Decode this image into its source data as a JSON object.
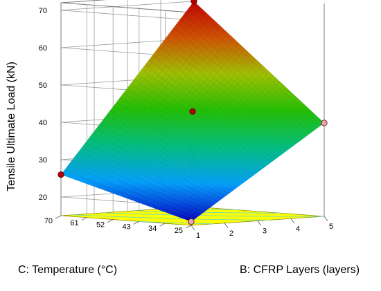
{
  "chart_data": {
    "type": "surface",
    "zlabel": "Tensile Ultimate Load (kN)",
    "xlabel": "B: CFRP Layers (layers)",
    "ylabel": "C: Temperature (°C)",
    "z_ticks": [
      "20",
      "30",
      "40",
      "50",
      "60",
      "70"
    ],
    "x_ticks": [
      "1",
      "2",
      "3",
      "4",
      "5"
    ],
    "y_ticks": [
      "25",
      "34",
      "43",
      "52",
      "61",
      "70"
    ],
    "xlim": [
      1,
      5
    ],
    "ylim": [
      25,
      70
    ],
    "zlim": [
      15,
      72
    ],
    "surface_corners": [
      {
        "layers": 1,
        "temperature": 25,
        "load": 16
      },
      {
        "layers": 1,
        "temperature": 70,
        "load": 26
      },
      {
        "layers": 5,
        "temperature": 25,
        "load": 40
      },
      {
        "layers": 5,
        "temperature": 70,
        "load": 70
      }
    ],
    "design_points": [
      {
        "layers": 1,
        "temperature": 25,
        "load": 16,
        "color": "#e9a6b8"
      },
      {
        "layers": 1,
        "temperature": 70,
        "load": 26,
        "color": "#b30000"
      },
      {
        "layers": 5,
        "temperature": 25,
        "load": 40,
        "color": "#e9a6b8"
      },
      {
        "layers": 5,
        "temperature": 70,
        "load": 70,
        "color": "#b30000"
      },
      {
        "layers": 3,
        "temperature": 47.5,
        "load": 43,
        "color": "#b30000"
      }
    ],
    "floor_color": "#ffff00",
    "colormap": [
      "#0000c8",
      "#00a0ff",
      "#00c080",
      "#20c000",
      "#a0c000",
      "#d05000",
      "#c00000"
    ]
  }
}
